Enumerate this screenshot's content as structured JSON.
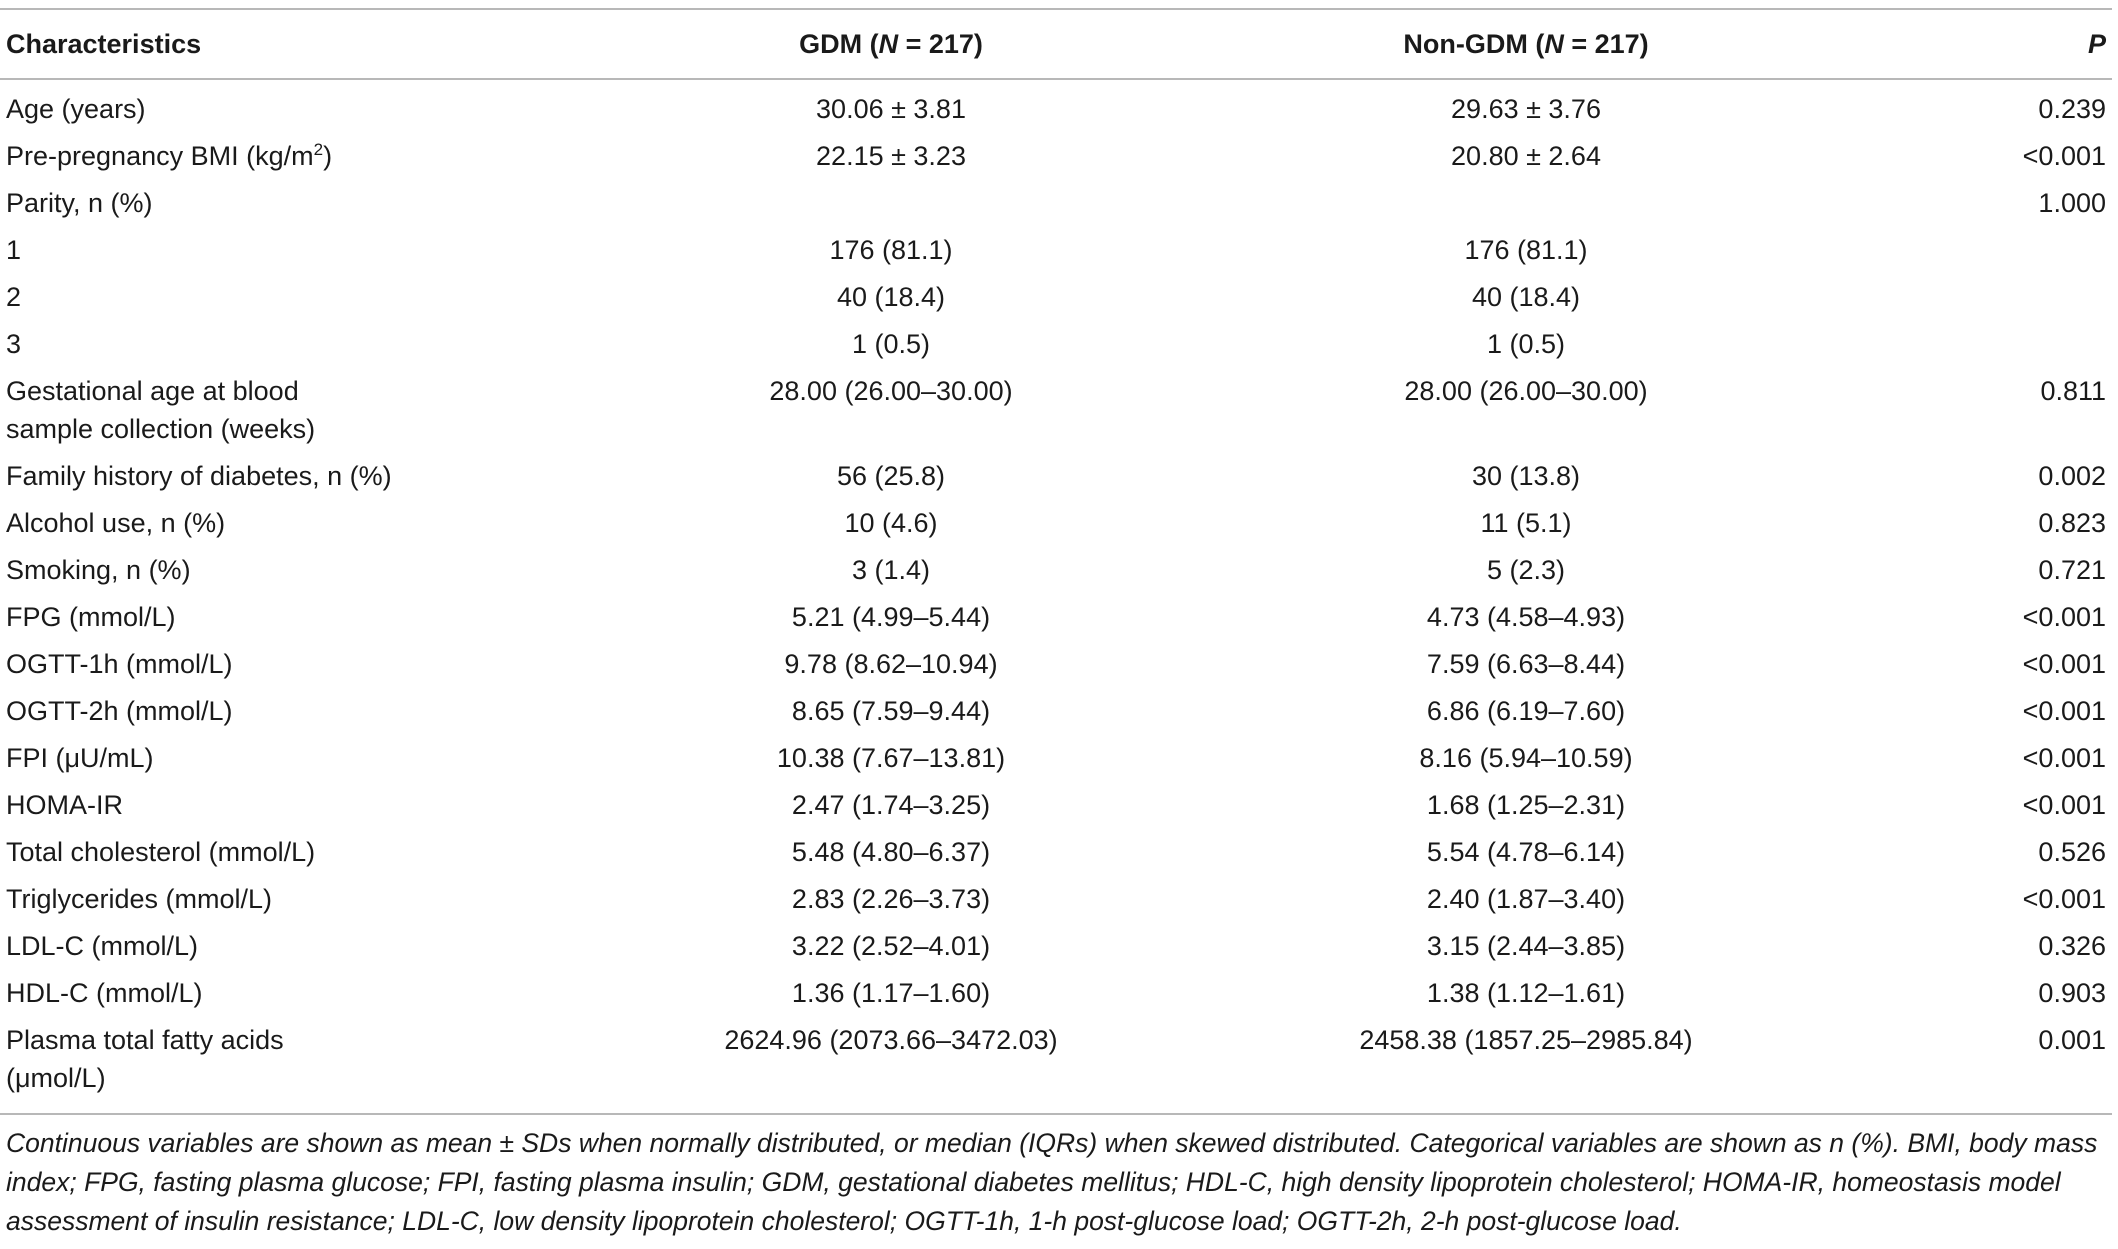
{
  "table": {
    "headers": {
      "characteristics": "Characteristics",
      "gdm_prefix": "GDM (",
      "gdm_n": "N",
      "gdm_suffix": " = 217)",
      "non_gdm_prefix": "Non-GDM (",
      "non_gdm_n": "N",
      "non_gdm_suffix": " = 217)",
      "p": "P"
    },
    "rows": [
      {
        "characteristic": "Age (years)",
        "gdm": "30.06 ± 3.81",
        "non_gdm": "29.63 ± 3.76",
        "p": "0.239"
      },
      {
        "characteristic": "Pre-pregnancy BMI (kg/m",
        "superscript": "2",
        "characteristic_suffix": ")",
        "gdm": "22.15 ± 3.23",
        "non_gdm": "20.80 ± 2.64",
        "p": "<0.001"
      },
      {
        "characteristic": "Parity, n (%)",
        "gdm": "",
        "non_gdm": "",
        "p": "1.000"
      },
      {
        "characteristic": "1",
        "gdm": "176 (81.1)",
        "non_gdm": "176 (81.1)",
        "p": ""
      },
      {
        "characteristic": "2",
        "gdm": "40 (18.4)",
        "non_gdm": "40 (18.4)",
        "p": ""
      },
      {
        "characteristic": "3",
        "gdm": "1 (0.5)",
        "non_gdm": "1 (0.5)",
        "p": ""
      },
      {
        "characteristic": "Gestational age at blood\nsample collection (weeks)",
        "gdm": "28.00 (26.00–30.00)",
        "non_gdm": "28.00 (26.00–30.00)",
        "p": "0.811"
      },
      {
        "characteristic": "Family history of diabetes, n (%)",
        "gdm": "56 (25.8)",
        "non_gdm": "30 (13.8)",
        "p": "0.002"
      },
      {
        "characteristic": "Alcohol use, n (%)",
        "gdm": "10 (4.6)",
        "non_gdm": "11 (5.1)",
        "p": "0.823"
      },
      {
        "characteristic": "Smoking, n (%)",
        "gdm": "3 (1.4)",
        "non_gdm": "5 (2.3)",
        "p": "0.721"
      },
      {
        "characteristic": "FPG (mmol/L)",
        "gdm": "5.21 (4.99–5.44)",
        "non_gdm": "4.73 (4.58–4.93)",
        "p": "<0.001"
      },
      {
        "characteristic": "OGTT-1h (mmol/L)",
        "gdm": "9.78 (8.62–10.94)",
        "non_gdm": "7.59 (6.63–8.44)",
        "p": "<0.001"
      },
      {
        "characteristic": "OGTT-2h (mmol/L)",
        "gdm": "8.65 (7.59–9.44)",
        "non_gdm": "6.86 (6.19–7.60)",
        "p": "<0.001"
      },
      {
        "characteristic": "FPI (μU/mL)",
        "gdm": "10.38 (7.67–13.81)",
        "non_gdm": "8.16 (5.94–10.59)",
        "p": "<0.001"
      },
      {
        "characteristic": "HOMA-IR",
        "gdm": "2.47 (1.74–3.25)",
        "non_gdm": "1.68 (1.25–2.31)",
        "p": "<0.001"
      },
      {
        "characteristic": "Total cholesterol (mmol/L)",
        "gdm": "5.48 (4.80–6.37)",
        "non_gdm": "5.54 (4.78–6.14)",
        "p": "0.526"
      },
      {
        "characteristic": "Triglycerides (mmol/L)",
        "gdm": "2.83 (2.26–3.73)",
        "non_gdm": "2.40 (1.87–3.40)",
        "p": "<0.001"
      },
      {
        "characteristic": "LDL-C (mmol/L)",
        "gdm": "3.22 (2.52–4.01)",
        "non_gdm": "3.15 (2.44–3.85)",
        "p": "0.326"
      },
      {
        "characteristic": "HDL-C (mmol/L)",
        "gdm": "1.36 (1.17–1.60)",
        "non_gdm": "1.38 (1.12–1.61)",
        "p": "0.903"
      },
      {
        "characteristic": "Plasma total fatty acids\n(μmol/L)",
        "gdm": "2624.96 (2073.66–3472.03)",
        "non_gdm": "2458.38 (1857.25–2985.84)",
        "p": "0.001"
      }
    ]
  },
  "footnote": "Continuous variables are shown as mean ± SDs when normally distributed, or median (IQRs) when skewed distributed. Categorical variables are shown as n (%). BMI, body mass index; FPG, fasting plasma glucose; FPI, fasting plasma insulin; GDM, gestational diabetes mellitus; HDL-C, high density lipoprotein cholesterol; HOMA-IR, homeostasis model assessment of insulin resistance; LDL-C, low density lipoprotein cholesterol; OGTT-1h, 1-h post-glucose load; OGTT-2h, 2-h post-glucose load."
}
